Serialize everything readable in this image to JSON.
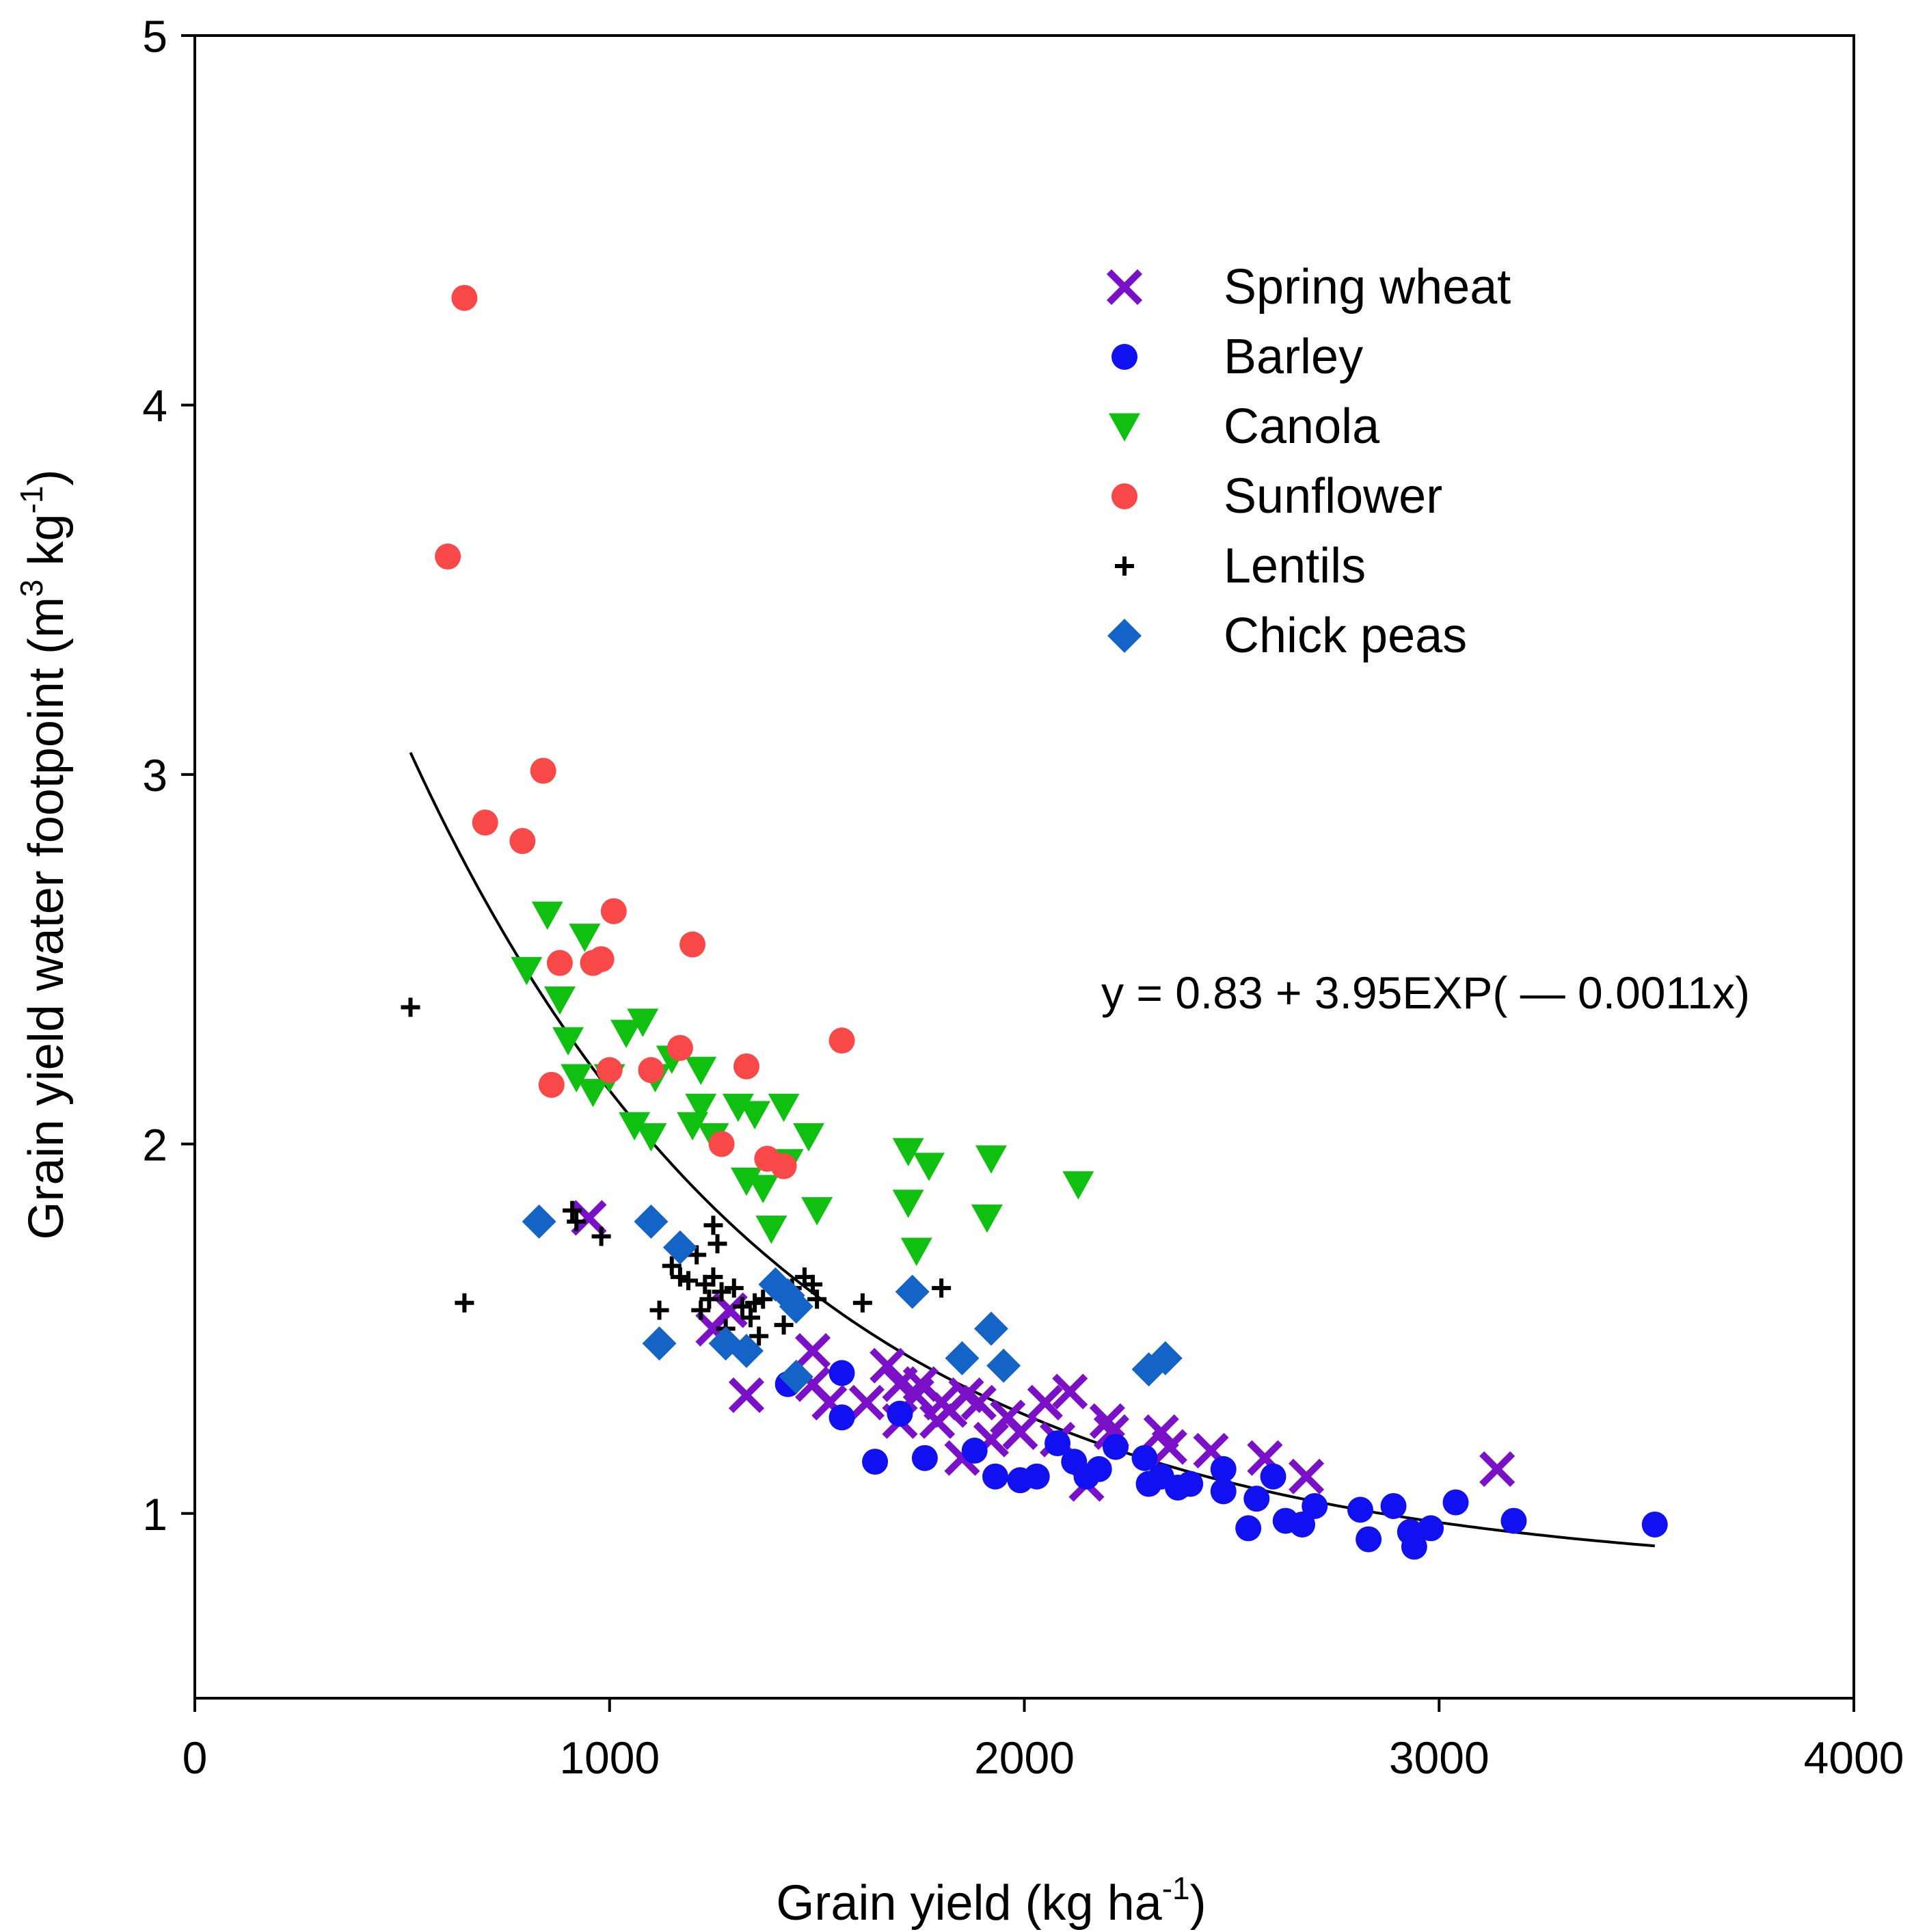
{
  "chart_data": {
    "type": "scatter",
    "title": "",
    "xlabel": {
      "main": "Grain yield (kg ha",
      "sup": "-1",
      "close": ")"
    },
    "ylabel": {
      "main": "Grain yield water footpoint (m",
      "sup1": "3",
      "mid": " kg",
      "sup2": "-1",
      "close": ")"
    },
    "xlim": [
      0,
      4000
    ],
    "ylim": [
      0.5,
      5
    ],
    "xticks": [
      0,
      1000,
      2000,
      3000,
      4000
    ],
    "yticks": [
      1,
      2,
      3,
      4,
      5
    ],
    "grid": false,
    "legend_position": "top-right",
    "equation": "y = 0.83 + 3.95EXP( — 0.0011x)",
    "fit": {
      "a": 0.83,
      "b": 3.95,
      "k": 0.0011,
      "x_range": [
        520,
        3520
      ]
    },
    "series": [
      {
        "name": "Spring wheat",
        "marker": "x",
        "color": "#7a10c8",
        "points": [
          [
            950,
            1.8
          ],
          [
            1250,
            1.5
          ],
          [
            1290,
            1.55
          ],
          [
            1330,
            1.32
          ],
          [
            1490,
            1.44
          ],
          [
            1490,
            1.35
          ],
          [
            1530,
            1.3
          ],
          [
            1620,
            1.3
          ],
          [
            1670,
            1.4
          ],
          [
            1700,
            1.25
          ],
          [
            1700,
            1.35
          ],
          [
            1740,
            1.32
          ],
          [
            1750,
            1.35
          ],
          [
            1790,
            1.25
          ],
          [
            1800,
            1.3
          ],
          [
            1820,
            1.28
          ],
          [
            1850,
            1.15
          ],
          [
            1860,
            1.32
          ],
          [
            1890,
            1.3
          ],
          [
            1920,
            1.2
          ],
          [
            1960,
            1.26
          ],
          [
            1990,
            1.22
          ],
          [
            2050,
            1.3
          ],
          [
            2080,
            1.2
          ],
          [
            2110,
            1.33
          ],
          [
            2150,
            1.08
          ],
          [
            2200,
            1.25
          ],
          [
            2210,
            1.22
          ],
          [
            2330,
            1.22
          ],
          [
            2350,
            1.18
          ],
          [
            2450,
            1.17
          ],
          [
            2580,
            1.15
          ],
          [
            2680,
            1.1
          ],
          [
            3140,
            1.12
          ]
        ]
      },
      {
        "name": "Barley",
        "marker": "circle",
        "color": "#1010f0",
        "points": [
          [
            1430,
            1.35
          ],
          [
            1560,
            1.38
          ],
          [
            1560,
            1.26
          ],
          [
            1640,
            1.14
          ],
          [
            1700,
            1.27
          ],
          [
            1760,
            1.15
          ],
          [
            1880,
            1.17
          ],
          [
            1930,
            1.1
          ],
          [
            1990,
            1.09
          ],
          [
            2030,
            1.1
          ],
          [
            2080,
            1.19
          ],
          [
            2120,
            1.14
          ],
          [
            2150,
            1.1
          ],
          [
            2180,
            1.12
          ],
          [
            2220,
            1.18
          ],
          [
            2290,
            1.15
          ],
          [
            2300,
            1.08
          ],
          [
            2330,
            1.1
          ],
          [
            2370,
            1.07
          ],
          [
            2400,
            1.08
          ],
          [
            2480,
            1.12
          ],
          [
            2480,
            1.06
          ],
          [
            2540,
            0.96
          ],
          [
            2560,
            1.04
          ],
          [
            2600,
            1.1
          ],
          [
            2630,
            0.98
          ],
          [
            2670,
            0.97
          ],
          [
            2700,
            1.02
          ],
          [
            2810,
            1.01
          ],
          [
            2830,
            0.93
          ],
          [
            2890,
            1.02
          ],
          [
            2930,
            0.95
          ],
          [
            2940,
            0.91
          ],
          [
            2980,
            0.96
          ],
          [
            3040,
            1.03
          ],
          [
            3180,
            0.98
          ],
          [
            3520,
            0.97
          ]
        ]
      },
      {
        "name": "Canola",
        "marker": "triangle-down",
        "color": "#10c010",
        "points": [
          [
            800,
            2.47
          ],
          [
            850,
            2.62
          ],
          [
            880,
            2.39
          ],
          [
            900,
            2.28
          ],
          [
            920,
            2.18
          ],
          [
            940,
            2.56
          ],
          [
            960,
            2.14
          ],
          [
            1000,
            2.18
          ],
          [
            1040,
            2.3
          ],
          [
            1060,
            2.05
          ],
          [
            1080,
            2.33
          ],
          [
            1100,
            2.02
          ],
          [
            1110,
            2.18
          ],
          [
            1150,
            2.23
          ],
          [
            1200,
            2.05
          ],
          [
            1220,
            2.2
          ],
          [
            1220,
            2.1
          ],
          [
            1250,
            2.02
          ],
          [
            1310,
            2.1
          ],
          [
            1330,
            1.9
          ],
          [
            1350,
            2.08
          ],
          [
            1370,
            1.88
          ],
          [
            1390,
            1.77
          ],
          [
            1420,
            2.1
          ],
          [
            1430,
            1.95
          ],
          [
            1480,
            2.02
          ],
          [
            1500,
            1.82
          ],
          [
            1720,
            1.98
          ],
          [
            1720,
            1.84
          ],
          [
            1740,
            1.71
          ],
          [
            1770,
            1.94
          ],
          [
            1910,
            1.8
          ],
          [
            1920,
            1.96
          ],
          [
            2130,
            1.89
          ]
        ]
      },
      {
        "name": "Sunflower",
        "marker": "circle",
        "color": "#f84848",
        "points": [
          [
            610,
            3.59
          ],
          [
            650,
            4.29
          ],
          [
            700,
            2.87
          ],
          [
            790,
            2.82
          ],
          [
            840,
            3.01
          ],
          [
            860,
            2.16
          ],
          [
            880,
            2.49
          ],
          [
            960,
            2.49
          ],
          [
            980,
            2.5
          ],
          [
            1000,
            2.2
          ],
          [
            1010,
            2.63
          ],
          [
            1100,
            2.2
          ],
          [
            1170,
            2.26
          ],
          [
            1200,
            2.54
          ],
          [
            1270,
            2.0
          ],
          [
            1330,
            2.21
          ],
          [
            1380,
            1.96
          ],
          [
            1420,
            1.94
          ],
          [
            1560,
            2.28
          ]
        ]
      },
      {
        "name": "Lentils",
        "marker": "plus",
        "color": "#000000",
        "points": [
          [
            520,
            2.37
          ],
          [
            650,
            1.57
          ],
          [
            910,
            1.82
          ],
          [
            920,
            1.79
          ],
          [
            980,
            1.75
          ],
          [
            1120,
            1.55
          ],
          [
            1150,
            1.67
          ],
          [
            1170,
            1.64
          ],
          [
            1190,
            1.63
          ],
          [
            1210,
            1.7
          ],
          [
            1220,
            1.55
          ],
          [
            1230,
            1.62
          ],
          [
            1240,
            1.58
          ],
          [
            1250,
            1.64
          ],
          [
            1250,
            1.78
          ],
          [
            1260,
            1.73
          ],
          [
            1270,
            1.6
          ],
          [
            1280,
            1.5
          ],
          [
            1300,
            1.61
          ],
          [
            1320,
            1.56
          ],
          [
            1340,
            1.53
          ],
          [
            1350,
            1.57
          ],
          [
            1360,
            1.48
          ],
          [
            1370,
            1.58
          ],
          [
            1420,
            1.51
          ],
          [
            1440,
            1.61
          ],
          [
            1470,
            1.64
          ],
          [
            1490,
            1.62
          ],
          [
            1500,
            1.58
          ],
          [
            1610,
            1.57
          ],
          [
            1800,
            1.61
          ]
        ]
      },
      {
        "name": "Chick peas",
        "marker": "diamond",
        "color": "#1464c8",
        "points": [
          [
            830,
            1.79
          ],
          [
            1100,
            1.79
          ],
          [
            1120,
            1.46
          ],
          [
            1170,
            1.72
          ],
          [
            1280,
            1.46
          ],
          [
            1330,
            1.44
          ],
          [
            1400,
            1.62
          ],
          [
            1430,
            1.59
          ],
          [
            1450,
            1.56
          ],
          [
            1450,
            1.37
          ],
          [
            1730,
            1.6
          ],
          [
            1850,
            1.42
          ],
          [
            1920,
            1.5
          ],
          [
            1950,
            1.4
          ],
          [
            2300,
            1.39
          ],
          [
            2340,
            1.42
          ]
        ]
      }
    ]
  }
}
